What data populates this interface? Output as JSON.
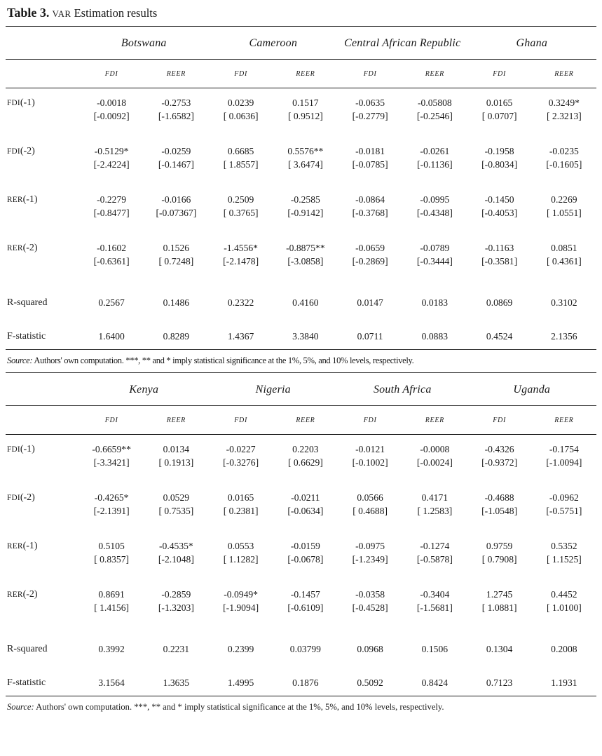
{
  "title": {
    "bold": "Table 3.",
    "smallcaps": "VAR",
    "rest": "Estimation results"
  },
  "tables": [
    {
      "countries": [
        "Botswana",
        "Cameroon",
        "Central African Republic",
        "Ghana"
      ],
      "subheaders": [
        "FDI",
        "REER"
      ],
      "rows": [
        {
          "label_sc": "FDI",
          "label_rest": "(-1)",
          "coef": [
            "-0.0018",
            "-0.2753",
            "0.0239",
            "0.1517",
            "-0.0635",
            "-0.05808",
            "0.0165",
            "0.3249*"
          ],
          "tstat": [
            "[-0.0092]",
            "[-1.6582]",
            "[ 0.0636]",
            "[ 0.9512]",
            "[-0.2779]",
            "[-0.2546]",
            "[ 0.0707]",
            "[ 2.3213]"
          ]
        },
        {
          "label_sc": "FDI",
          "label_rest": "(-2)",
          "coef": [
            "-0.5129*",
            "-0.0259",
            "0.6685",
            "0.5576**",
            "-0.0181",
            "-0.0261",
            "-0.1958",
            "-0.0235"
          ],
          "tstat": [
            "[-2.4224]",
            "[-0.1467]",
            "[ 1.8557]",
            "[ 3.6474]",
            "[-0.0785]",
            "[-0.1136]",
            "[-0.8034]",
            "[-0.1605]"
          ]
        },
        {
          "label_sc": "RER",
          "label_rest": "(-1)",
          "coef": [
            "-0.2279",
            "-0.0166",
            "0.2509",
            "-0.2585",
            "-0.0864",
            "-0.0995",
            "-0.1450",
            "0.2269"
          ],
          "tstat": [
            "[-0.8477]",
            "[-0.07367]",
            "[ 0.3765]",
            "[-0.9142]",
            "[-0.3768]",
            "[-0.4348]",
            "[-0.4053]",
            "[ 1.0551]"
          ]
        },
        {
          "label_sc": "RER",
          "label_rest": "(-2)",
          "coef": [
            "-0.1602",
            "0.1526",
            "-1.4556*",
            "-0.8875**",
            "-0.0659",
            "-0.0789",
            "-0.1163",
            "0.0851"
          ],
          "tstat": [
            "[-0.6361]",
            "[ 0.7248]",
            "[-2.1478]",
            "[-3.0858]",
            "[-0.2869]",
            "[-0.3444]",
            "[-0.3581]",
            "[ 0.4361]"
          ]
        },
        {
          "label_sc": "",
          "label_rest": "R-squared",
          "coef": [
            "0.2567",
            "0.1486",
            "0.2322",
            "0.4160",
            "0.0147",
            "0.0183",
            "0.0869",
            "0.3102"
          ],
          "tstat": null
        },
        {
          "label_sc": "",
          "label_rest": "F-statistic",
          "coef": [
            "1.6400",
            "0.8289",
            "1.4367",
            "3.3840",
            "0.0711",
            "0.0883",
            "0.4524",
            "2.1356"
          ],
          "tstat": null
        }
      ],
      "source": {
        "label": "Source:",
        "text": " Authors' own computation. ***, ** and * imply statistical significance at the 1%, 5%, and 10% levels, respectively."
      }
    },
    {
      "countries": [
        "Kenya",
        "Nigeria",
        "South Africa",
        "Uganda"
      ],
      "subheaders": [
        "FDI",
        "REER"
      ],
      "rows": [
        {
          "label_sc": "FDI",
          "label_rest": "(-1)",
          "coef": [
            "-0.6659**",
            "0.0134",
            "-0.0227",
            "0.2203",
            "-0.0121",
            "-0.0008",
            "-0.4326",
            "-0.1754"
          ],
          "tstat": [
            "[-3.3421]",
            "[ 0.1913]",
            "[-0.3276]",
            "[ 0.6629]",
            "[-0.1002]",
            "[-0.0024]",
            "[-0.9372]",
            "[-1.0094]"
          ]
        },
        {
          "label_sc": "FDI",
          "label_rest": "(-2)",
          "coef": [
            "-0.4265*",
            "0.0529",
            "0.0165",
            "-0.0211",
            "0.0566",
            "0.4171",
            "-0.4688",
            "-0.0962"
          ],
          "tstat": [
            "[-2.1391]",
            "[ 0.7535]",
            "[ 0.2381]",
            "[-0.0634]",
            "[ 0.4688]",
            "[ 1.2583]",
            "[-1.0548]",
            "[-0.5751]"
          ]
        },
        {
          "label_sc": "RER",
          "label_rest": "(-1)",
          "coef": [
            "0.5105",
            "-0.4535*",
            "0.0553",
            "-0.0159",
            "-0.0975",
            "-0.1274",
            "0.9759",
            "0.5352"
          ],
          "tstat": [
            "[ 0.8357]",
            "[-2.1048]",
            "[ 1.1282]",
            "[-0.0678]",
            "[-1.2349]",
            "[-0.5878]",
            "[ 0.7908]",
            "[ 1.1525]"
          ]
        },
        {
          "label_sc": "RER",
          "label_rest": "(-2)",
          "coef": [
            "0.8691",
            "-0.2859",
            "-0.0949*",
            "-0.1457",
            "-0.0358",
            "-0.3404",
            "1.2745",
            "0.4452"
          ],
          "tstat": [
            "[ 1.4156]",
            "[-1.3203]",
            "[-1.9094]",
            "[-0.6109]",
            "[-0.4528]",
            "[-1.5681]",
            "[ 1.0881]",
            "[ 1.0100]"
          ]
        },
        {
          "label_sc": "",
          "label_rest": "R-squared",
          "coef": [
            "0.3992",
            "0.2231",
            "0.2399",
            "0.03799",
            "0.0968",
            "0.1506",
            "0.1304",
            "0.2008"
          ],
          "tstat": null
        },
        {
          "label_sc": "",
          "label_rest": "F-statistic",
          "coef": [
            "3.1564",
            "1.3635",
            "1.4995",
            "0.1876",
            "0.5092",
            "0.8424",
            "0.7123",
            "1.1931"
          ],
          "tstat": null
        }
      ],
      "source": {
        "label": "Source:",
        "text": " Authors' own computation. ***, ** and * imply statistical significance at the 1%, 5%, and 10% levels, respectively."
      }
    }
  ],
  "chart_data": {
    "type": "table",
    "title": "Table 3. VAR Estimation results",
    "note": "Coefficient rows with t-statistics in brackets; * / ** / *** denote significance at 10% / 5% / 1%"
  }
}
